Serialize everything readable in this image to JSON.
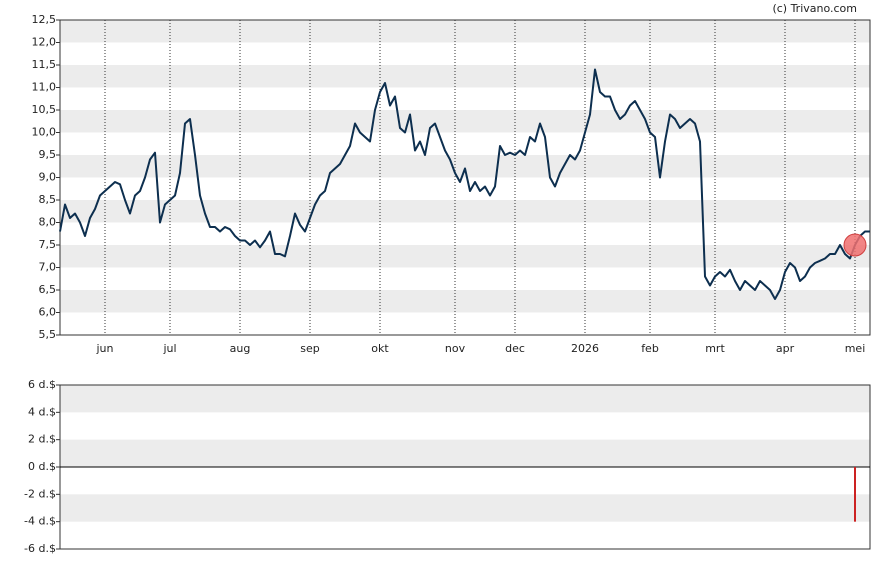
{
  "chart_data": [
    {
      "type": "line",
      "attribution": "(c) Trivano.com",
      "categories": [
        null,
        null,
        null,
        null,
        null,
        null,
        null,
        null,
        null,
        "jun",
        null,
        null,
        null,
        null,
        null,
        null,
        null,
        null,
        null,
        null,
        null,
        null,
        "jul",
        null,
        null,
        null,
        null,
        null,
        null,
        null,
        null,
        null,
        null,
        null,
        null,
        null,
        "aug",
        null,
        null,
        null,
        null,
        null,
        null,
        null,
        null,
        null,
        null,
        null,
        null,
        null,
        "sep",
        null,
        null,
        null,
        null,
        null,
        null,
        null,
        null,
        null,
        null,
        null,
        null,
        null,
        "okt",
        null,
        null,
        null,
        null,
        null,
        null,
        null,
        null,
        null,
        null,
        null,
        null,
        null,
        null,
        "nov",
        null,
        null,
        null,
        null,
        null,
        null,
        null,
        null,
        null,
        null,
        null,
        "dec",
        null,
        null,
        null,
        null,
        null,
        null,
        null,
        null,
        null,
        null,
        null,
        null,
        null,
        "2026",
        null,
        null,
        null,
        null,
        null,
        null,
        null,
        null,
        null,
        null,
        null,
        null,
        "feb",
        null,
        null,
        null,
        null,
        null,
        null,
        null,
        null,
        null,
        null,
        null,
        null,
        "mrt",
        null,
        null,
        null,
        null,
        null,
        null,
        null,
        null,
        null,
        null,
        null,
        null,
        null,
        "apr",
        null,
        null,
        null,
        null,
        null,
        null,
        null,
        null,
        null,
        null,
        null,
        null,
        null,
        "mei",
        null,
        null,
        null
      ],
      "values": [
        7.8,
        8.4,
        8.1,
        8.2,
        8.0,
        7.7,
        8.1,
        8.3,
        8.6,
        8.7,
        8.8,
        8.9,
        8.85,
        8.5,
        8.2,
        8.6,
        8.7,
        9.0,
        9.4,
        9.55,
        8.0,
        8.4,
        8.5,
        8.6,
        9.1,
        10.2,
        10.3,
        9.5,
        8.6,
        8.2,
        7.9,
        7.9,
        7.8,
        7.9,
        7.85,
        7.7,
        7.6,
        7.6,
        7.5,
        7.6,
        7.45,
        7.6,
        7.8,
        7.3,
        7.3,
        7.25,
        7.7,
        8.2,
        7.95,
        7.8,
        8.1,
        8.4,
        8.6,
        8.7,
        9.1,
        9.2,
        9.3,
        9.5,
        9.7,
        10.2,
        10.0,
        9.9,
        9.8,
        10.5,
        10.9,
        11.1,
        10.6,
        10.8,
        10.1,
        10.0,
        10.4,
        9.6,
        9.8,
        9.5,
        10.1,
        10.2,
        9.9,
        9.6,
        9.4,
        9.1,
        8.9,
        9.2,
        8.7,
        8.9,
        8.7,
        8.8,
        8.6,
        8.8,
        9.7,
        9.5,
        9.55,
        9.5,
        9.6,
        9.5,
        9.9,
        9.8,
        10.2,
        9.9,
        9.0,
        8.8,
        9.1,
        9.3,
        9.5,
        9.4,
        9.6,
        10.0,
        10.4,
        11.4,
        10.9,
        10.8,
        10.8,
        10.5,
        10.3,
        10.4,
        10.6,
        10.7,
        10.5,
        10.3,
        10.0,
        9.9,
        9.0,
        9.8,
        10.4,
        10.3,
        10.1,
        10.2,
        10.3,
        10.2,
        9.8,
        6.8,
        6.6,
        6.8,
        6.9,
        6.8,
        6.95,
        6.7,
        6.5,
        6.7,
        6.6,
        6.5,
        6.7,
        6.6,
        6.5,
        6.3,
        6.5,
        6.9,
        7.1,
        7.0,
        6.7,
        6.8,
        7.0,
        7.1,
        7.15,
        7.2,
        7.3,
        7.3,
        7.5,
        7.3,
        7.2,
        7.5,
        7.7,
        7.8,
        7.8
      ],
      "color": "#0d2f4f",
      "highlight_index": 159,
      "highlight_color": "#f07070",
      "ylim": [
        5.5,
        12.5
      ],
      "yticks": [
        {
          "value": 5.5,
          "label": "5,5"
        },
        {
          "value": 6,
          "label": "6,0"
        },
        {
          "value": 6.5,
          "label": "6,5"
        },
        {
          "value": 7,
          "label": "7,0"
        },
        {
          "value": 7.5,
          "label": "7,5"
        },
        {
          "value": 8,
          "label": "8,0"
        },
        {
          "value": 8.5,
          "label": "8,5"
        },
        {
          "value": 9,
          "label": "9,0"
        },
        {
          "value": 9.5,
          "label": "9,5"
        },
        {
          "value": 10,
          "label": "10,0"
        },
        {
          "value": 10.5,
          "label": "10,5"
        },
        {
          "value": 11,
          "label": "11,0"
        },
        {
          "value": 11.5,
          "label": "11,5"
        },
        {
          "value": 12,
          "label": "12,0"
        },
        {
          "value": 12.5,
          "label": "12,5"
        }
      ],
      "grid": true
    },
    {
      "type": "bar",
      "color": "#cc2222",
      "values": [
        null,
        null,
        null,
        null,
        null,
        null,
        null,
        null,
        null,
        null,
        null,
        null,
        null,
        null,
        null,
        null,
        null,
        null,
        null,
        null,
        null,
        null,
        null,
        null,
        null,
        null,
        null,
        null,
        null,
        null,
        null,
        null,
        null,
        null,
        null,
        null,
        null,
        null,
        null,
        null,
        null,
        null,
        null,
        null,
        null,
        null,
        null,
        null,
        null,
        null,
        null,
        null,
        null,
        null,
        null,
        null,
        null,
        null,
        null,
        null,
        null,
        null,
        null,
        null,
        null,
        null,
        null,
        null,
        null,
        null,
        null,
        null,
        null,
        null,
        null,
        null,
        null,
        null,
        null,
        null,
        null,
        null,
        null,
        null,
        null,
        null,
        null,
        null,
        null,
        null,
        null,
        null,
        null,
        null,
        null,
        null,
        null,
        null,
        null,
        null,
        null,
        null,
        null,
        null,
        null,
        null,
        null,
        null,
        null,
        null,
        null,
        null,
        null,
        null,
        null,
        null,
        null,
        null,
        null,
        null,
        null,
        null,
        null,
        null,
        null,
        null,
        null,
        null,
        null,
        null,
        null,
        null,
        null,
        null,
        null,
        null,
        null,
        null,
        null,
        null,
        null,
        null,
        null,
        null,
        null,
        null,
        null,
        null,
        null,
        null,
        null,
        null,
        null,
        null,
        null,
        null,
        null,
        null,
        null,
        -4,
        null,
        null,
        null
      ],
      "ylim": [
        -6,
        6
      ],
      "yticks": [
        {
          "value": -6,
          "label": "-6 d.$"
        },
        {
          "value": -4,
          "label": "-4 d.$"
        },
        {
          "value": -2,
          "label": "-2 d.$"
        },
        {
          "value": 0,
          "label": "0 d.$"
        },
        {
          "value": 2,
          "label": "2 d.$"
        },
        {
          "value": 4,
          "label": "4 d.$"
        },
        {
          "value": 6,
          "label": "6 d.$"
        }
      ],
      "grid": true
    }
  ]
}
